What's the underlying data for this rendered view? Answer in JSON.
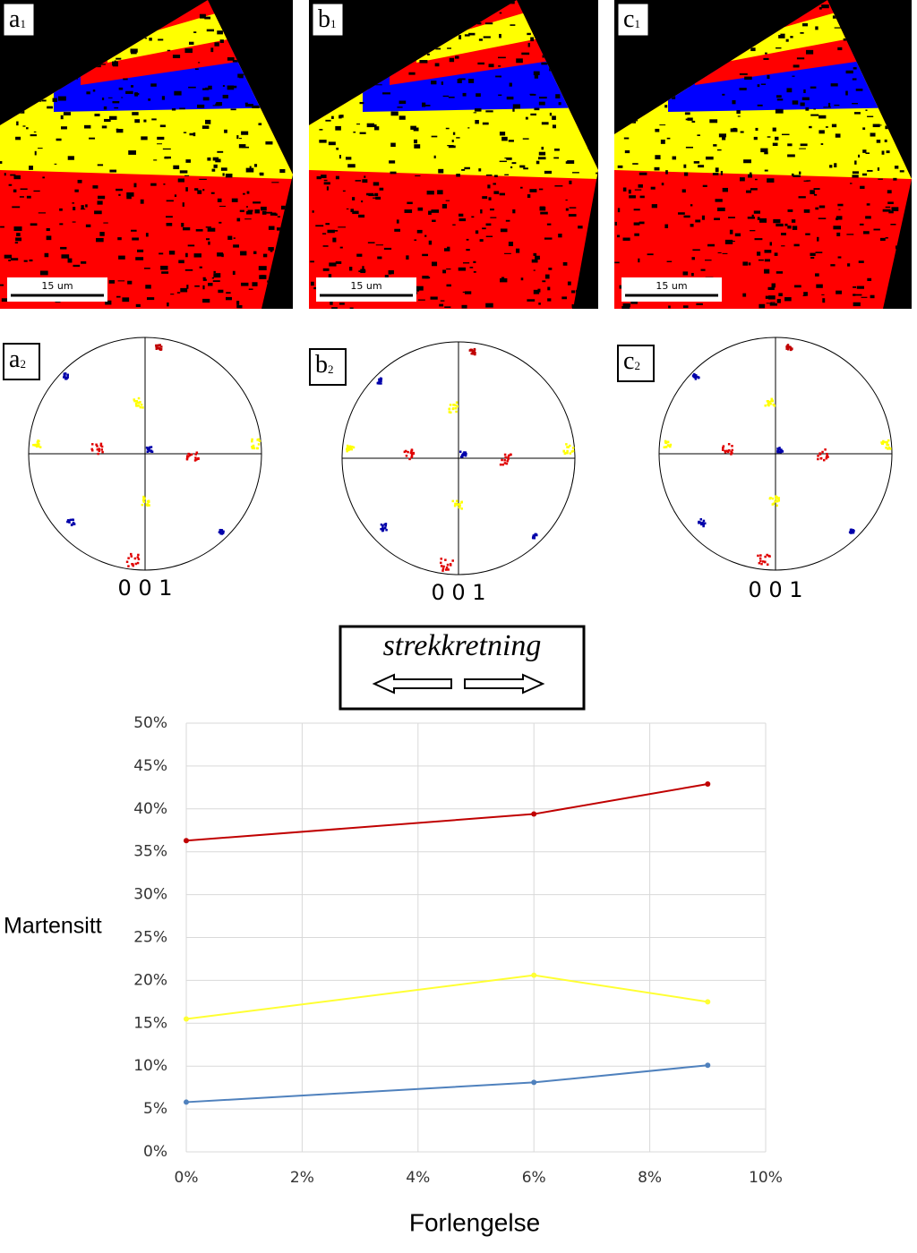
{
  "panels": [
    {
      "map_label": {
        "letter": "a",
        "sub": "1"
      },
      "scale_bar": "15 um",
      "pole_label": {
        "letter": "a",
        "sub": "2"
      },
      "pole_axis": "0 0 1"
    },
    {
      "map_label": {
        "letter": "b",
        "sub": "1"
      },
      "scale_bar": "15 um",
      "pole_label": {
        "letter": "b",
        "sub": "2"
      },
      "pole_axis": "0 0 1"
    },
    {
      "map_label": {
        "letter": "c",
        "sub": "1"
      },
      "scale_bar": "15 um",
      "pole_label": {
        "letter": "c",
        "sub": "2"
      },
      "pole_axis": "0 0 1"
    }
  ],
  "direction_label": "strekkretning",
  "chart_data": {
    "type": "line",
    "x_label": "Forlengelse",
    "y_label": "Martensitt",
    "x": [
      0,
      6,
      9
    ],
    "series": [
      {
        "color": "#c00000",
        "values": [
          36.3,
          39.4,
          42.9
        ]
      },
      {
        "color": "#ffff33",
        "values": [
          15.5,
          20.6,
          17.5
        ]
      },
      {
        "color": "#4f81bd",
        "values": [
          5.8,
          8.1,
          10.1
        ]
      }
    ],
    "xlim": [
      0,
      10
    ],
    "xticks": [
      {
        "value": 0,
        "label": "0%"
      },
      {
        "value": 2,
        "label": "2%"
      },
      {
        "value": 4,
        "label": "4%"
      },
      {
        "value": 6,
        "label": "6%"
      },
      {
        "value": 8,
        "label": "8%"
      },
      {
        "value": 10,
        "label": "10%"
      }
    ],
    "ylim": [
      0,
      50
    ],
    "yticks": [
      {
        "value": 0,
        "label": "0%"
      },
      {
        "value": 5,
        "label": "5%"
      },
      {
        "value": 10,
        "label": "10%"
      },
      {
        "value": 15,
        "label": "15%"
      },
      {
        "value": 20,
        "label": "20%"
      },
      {
        "value": 25,
        "label": "25%"
      },
      {
        "value": 30,
        "label": "30%"
      },
      {
        "value": 35,
        "label": "35%"
      },
      {
        "value": 40,
        "label": "40%"
      },
      {
        "value": 45,
        "label": "45%"
      },
      {
        "value": 50,
        "label": "50%"
      }
    ],
    "grid": true
  }
}
